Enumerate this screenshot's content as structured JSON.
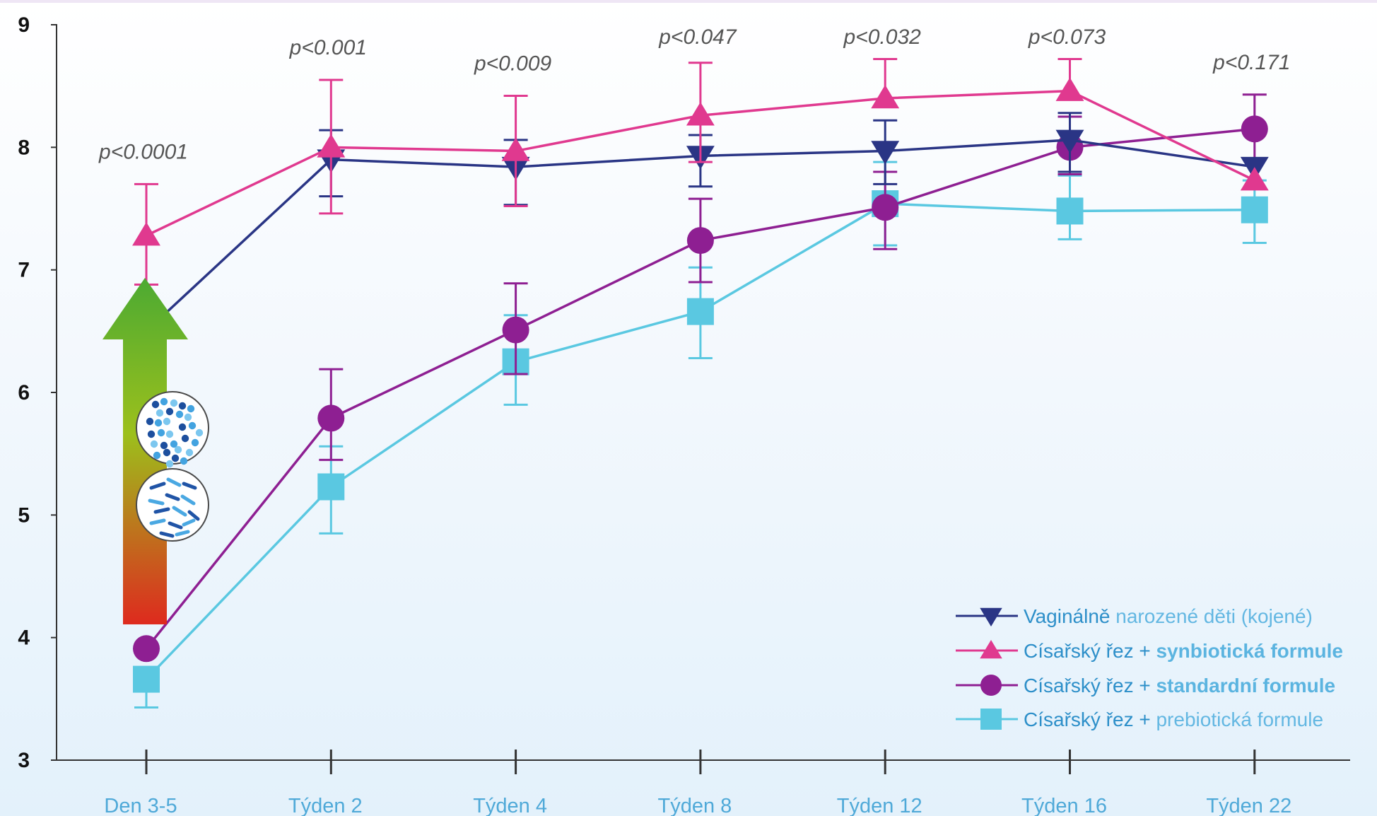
{
  "chart_data": {
    "type": "line",
    "title": "",
    "xlabel": "",
    "ylabel": "",
    "ylim": [
      3,
      9
    ],
    "yticks": [
      3,
      4,
      5,
      6,
      7,
      8,
      9
    ],
    "categories": [
      "Den 3-5",
      "Týden 2",
      "Týden 4",
      "Týden 8",
      "Týden 12",
      "Týden 16",
      "Týden 22"
    ],
    "p_values": [
      "p<0.0001",
      "p<0.001",
      "p<0.009",
      "p<0.047",
      "p<0.032",
      "p<0.073",
      "p<0.171"
    ],
    "series": [
      {
        "name": "Vaginálně narozené děti (kojené)",
        "name_parts": [
          {
            "text": "Vaginálně ",
            "style": "dark"
          },
          {
            "text": "narozené děti (kojené)",
            "style": "light"
          }
        ],
        "color": "#2a3585",
        "marker": "triangle-down",
        "values": [
          6.5,
          7.9,
          7.84,
          7.93,
          7.97,
          8.06,
          7.84
        ],
        "error_low": [
          null,
          7.6,
          7.53,
          7.68,
          7.7,
          7.8,
          null
        ],
        "error_high": [
          null,
          8.14,
          8.06,
          8.1,
          8.22,
          8.28,
          null
        ]
      },
      {
        "name": "Císařský řez + synbiotická formule",
        "name_parts": [
          {
            "text": "Císařský řez + ",
            "style": "dark"
          },
          {
            "text": "synbiotická formule",
            "style": "bold"
          }
        ],
        "color": "#e0398f",
        "marker": "triangle-up",
        "values": [
          7.28,
          8.0,
          7.97,
          8.26,
          8.4,
          8.46,
          7.73
        ],
        "error_low": [
          6.88,
          7.46,
          7.52,
          7.88,
          null,
          null,
          null
        ],
        "error_high": [
          7.7,
          8.55,
          8.42,
          8.69,
          8.72,
          8.72,
          null
        ]
      },
      {
        "name": "Císařský řez + standardní formule",
        "name_parts": [
          {
            "text": "Císařský řez + ",
            "style": "dark"
          },
          {
            "text": "standardní formule",
            "style": "bold"
          }
        ],
        "color": "#8e1f92",
        "marker": "circle",
        "values": [
          3.91,
          5.79,
          6.51,
          7.24,
          7.51,
          8.0,
          8.15
        ],
        "error_low": [
          null,
          5.45,
          6.15,
          6.9,
          7.17,
          7.78,
          7.9
        ],
        "error_high": [
          null,
          6.19,
          6.89,
          7.58,
          7.8,
          8.25,
          8.43
        ]
      },
      {
        "name": "Císařský řez + prebiotická formule",
        "name_parts": [
          {
            "text": "Císařský řez + ",
            "style": "dark"
          },
          {
            "text": "prebiotická formule",
            "style": "light"
          }
        ],
        "color": "#5ac8e1",
        "marker": "square",
        "values": [
          3.66,
          5.23,
          6.25,
          6.66,
          7.54,
          7.48,
          7.49
        ],
        "error_low": [
          3.43,
          4.85,
          5.9,
          6.28,
          7.2,
          7.25,
          7.22
        ],
        "error_high": [
          null,
          5.56,
          6.63,
          7.02,
          7.88,
          7.77,
          7.73
        ]
      }
    ],
    "colors": {
      "axis": "#333333",
      "legend_dark_text": "#2d8fc9",
      "legend_light_text": "#63b7e2",
      "legend_bold_text": "#5bb4e0",
      "arrow_top": "#4caa32",
      "arrow_mid": "#9cc01c",
      "arrow_bottom": "#de2a1e"
    },
    "annotations": [
      "green-to-red-arrow",
      "cocci-bacteria-icon",
      "bifidobacteria-icon"
    ]
  }
}
